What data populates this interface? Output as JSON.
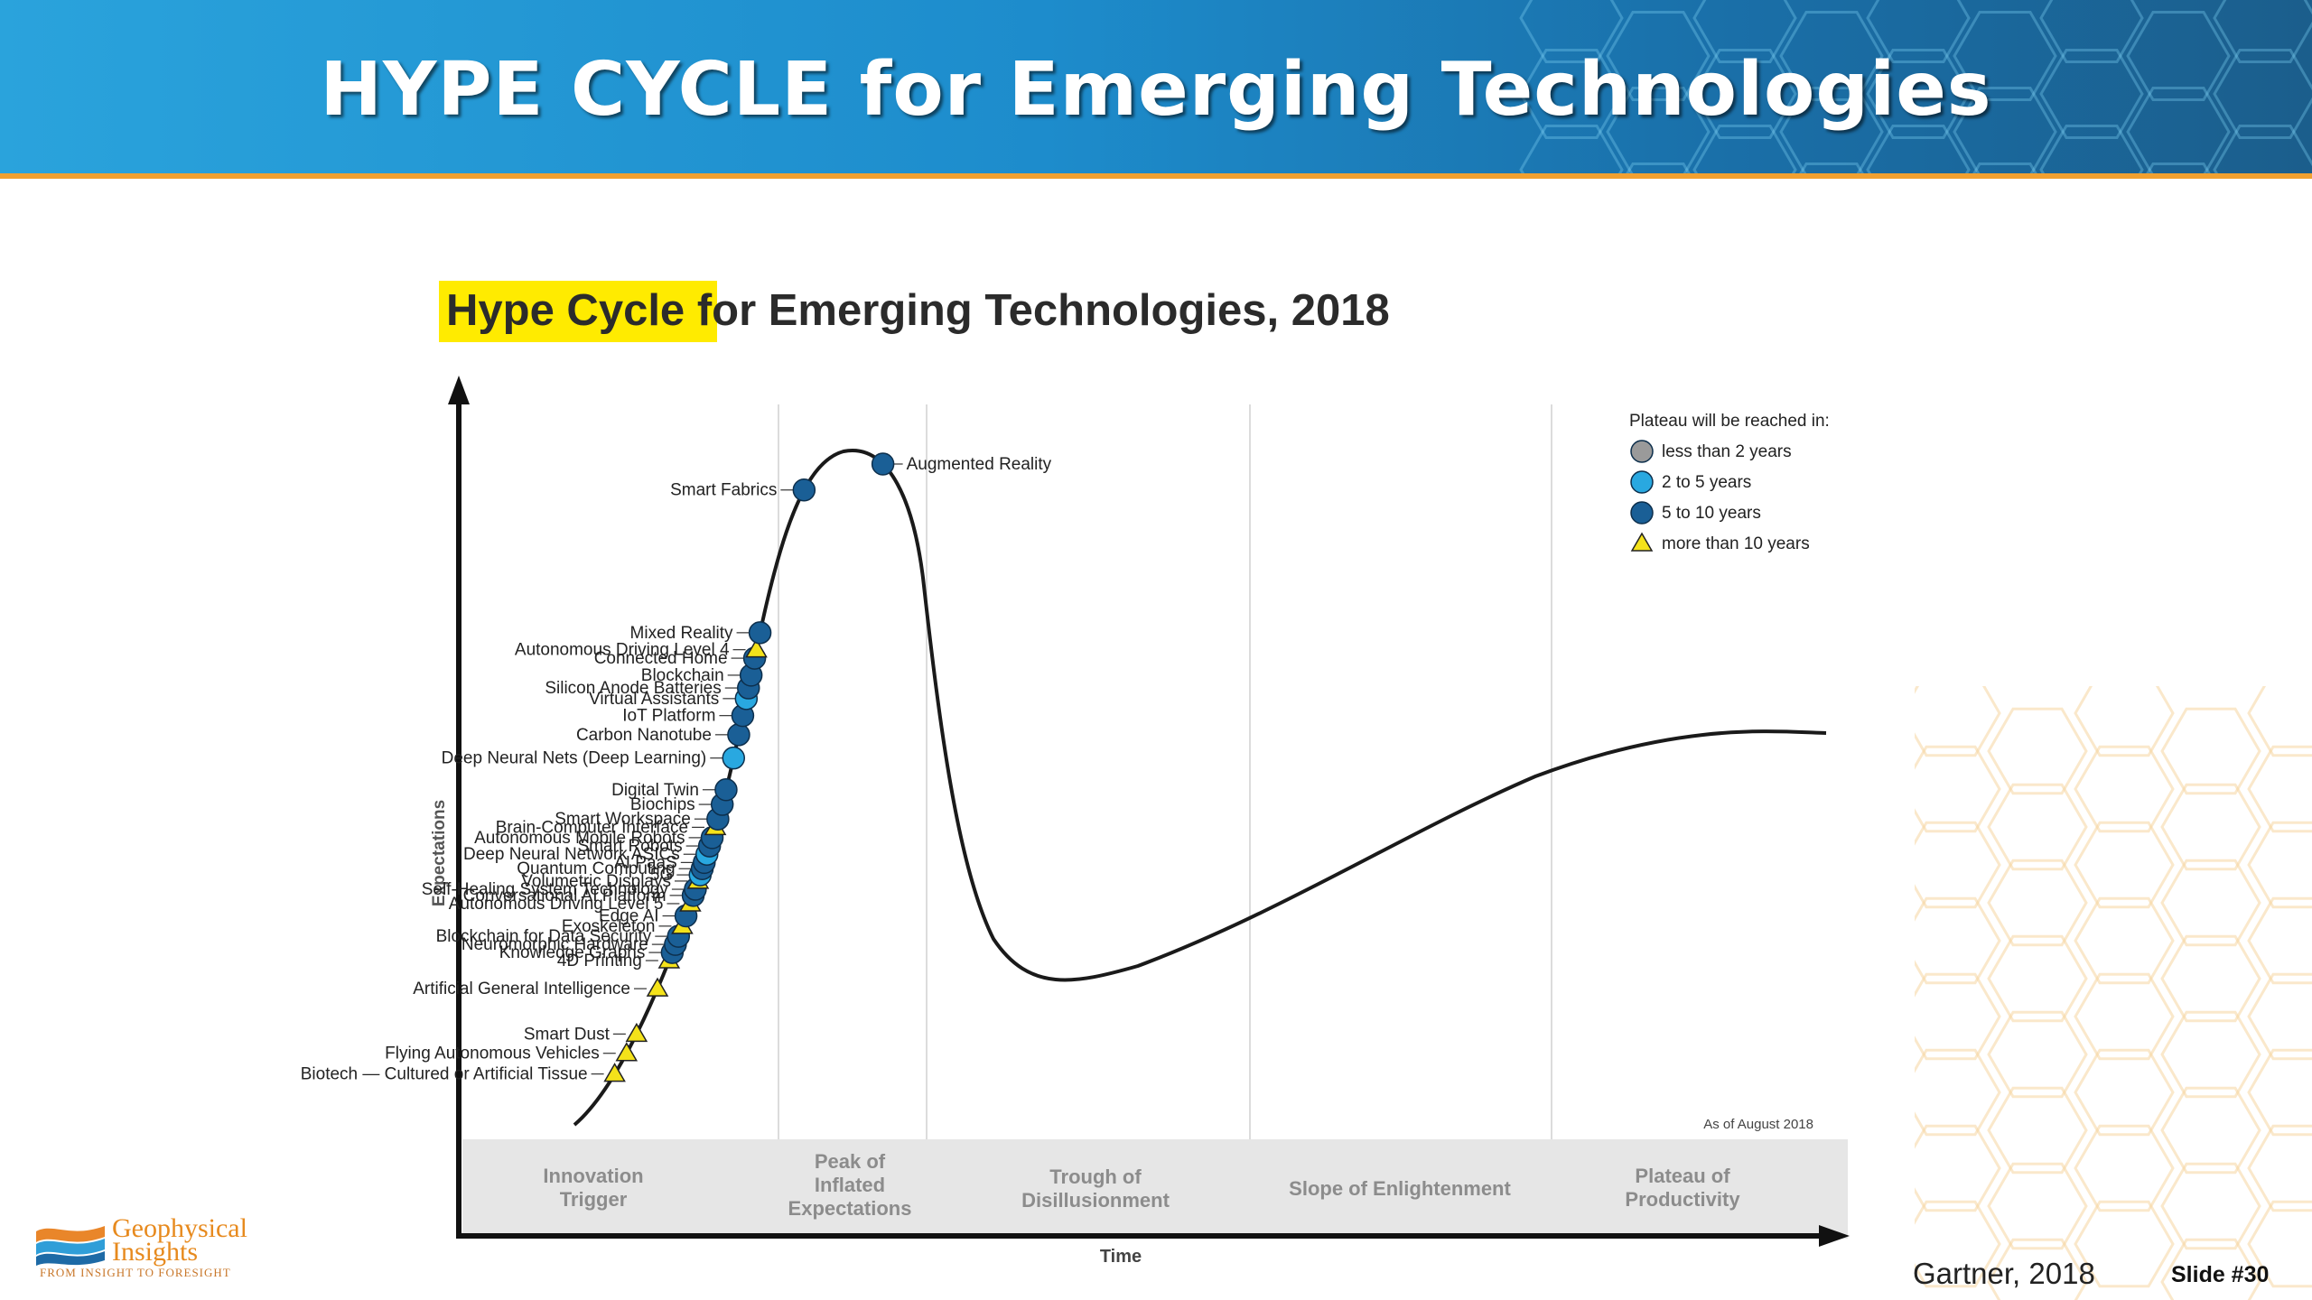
{
  "slide": {
    "title": "HYPE CYCLE for Emerging Technologies",
    "citation": "Gartner, 2018",
    "slide_number": "Slide #30",
    "logo": {
      "name_line1": "Geophysical",
      "name_line2": "Insights",
      "tagline": "FROM INSIGHT TO FORESIGHT"
    }
  },
  "colors": {
    "header_blue": "#1d8ccc",
    "header_accent": "#f0a030",
    "legend_highlight": "#ffeb00",
    "curve": "#1a1a1a",
    "less_than_2": "#9a9a9a",
    "two_to_five": "#29a8e0",
    "five_to_ten": "#1a5f96",
    "more_than_10": "#f4e21a"
  },
  "chart_data": {
    "type": "scatter",
    "title_highlight": "Hype Cycle",
    "title_rest": " for Emerging Technologies, 2018",
    "xlabel": "Time",
    "ylabel": "Expectations",
    "as_of": "As of August 2018",
    "phases": [
      "Innovation Trigger",
      "Peak of Inflated Expectations",
      "Trough of Disillusionment",
      "Slope of Enlightenment",
      "Plateau of Productivity"
    ],
    "legend": {
      "title": "Plateau will be reached in:",
      "items": [
        {
          "key": "lt2",
          "label": "less than 2 years",
          "shape": "circle"
        },
        {
          "key": "2to5",
          "label": "2 to 5 years",
          "shape": "circle"
        },
        {
          "key": "5to10",
          "label": "5 to 10 years",
          "shape": "circle"
        },
        {
          "key": "gt10",
          "label": "more than 10 years",
          "shape": "triangle"
        }
      ]
    },
    "technologies": [
      {
        "name": "Biotech — Cultured or Artificial Tissue",
        "plateau": "gt10",
        "t": 0.03
      },
      {
        "name": "Flying Autonomous Vehicles",
        "plateau": "gt10",
        "t": 0.041
      },
      {
        "name": "Smart Dust",
        "plateau": "gt10",
        "t": 0.051
      },
      {
        "name": "Artificial General Intelligence",
        "plateau": "gt10",
        "t": 0.074
      },
      {
        "name": "4D Printing",
        "plateau": "gt10",
        "t": 0.088
      },
      {
        "name": "Knowledge Graphs",
        "plateau": "5to10",
        "t": 0.092
      },
      {
        "name": "Neuromorphic Hardware",
        "plateau": "5to10",
        "t": 0.096
      },
      {
        "name": "Blockchain for Data Security",
        "plateau": "5to10",
        "t": 0.1
      },
      {
        "name": "Exoskeleton",
        "plateau": "gt10",
        "t": 0.105
      },
      {
        "name": "Edge AI",
        "plateau": "5to10",
        "t": 0.11
      },
      {
        "name": "Autonomous Driving Level 5",
        "plateau": "gt10",
        "t": 0.116
      },
      {
        "name": "Conversational AI Platform",
        "plateau": "5to10",
        "t": 0.12
      },
      {
        "name": "Self-Healing System Technology",
        "plateau": "5to10",
        "t": 0.123
      },
      {
        "name": "Volumetric Displays",
        "plateau": "gt10",
        "t": 0.127
      },
      {
        "name": "5G",
        "plateau": "2to5",
        "t": 0.13
      },
      {
        "name": "Quantum Computing",
        "plateau": "5to10",
        "t": 0.133
      },
      {
        "name": "AI PaaS",
        "plateau": "5to10",
        "t": 0.136
      },
      {
        "name": "Deep Neural Network ASICs",
        "plateau": "2to5",
        "t": 0.14
      },
      {
        "name": "Smart Robots",
        "plateau": "5to10",
        "t": 0.144
      },
      {
        "name": "Autonomous Mobile Robots",
        "plateau": "5to10",
        "t": 0.148
      },
      {
        "name": "Brain-Computer Interface",
        "plateau": "gt10",
        "t": 0.153
      },
      {
        "name": "Smart Workspace",
        "plateau": "5to10",
        "t": 0.157
      },
      {
        "name": "Biochips",
        "plateau": "5to10",
        "t": 0.164
      },
      {
        "name": "Digital Twin",
        "plateau": "5to10",
        "t": 0.171
      },
      {
        "name": "Deep Neural Nets (Deep Learning)",
        "plateau": "2to5",
        "t": 0.186
      },
      {
        "name": "Carbon Nanotube",
        "plateau": "5to10",
        "t": 0.197
      },
      {
        "name": "IoT Platform",
        "plateau": "5to10",
        "t": 0.206
      },
      {
        "name": "Virtual Assistants",
        "plateau": "2to5",
        "t": 0.214
      },
      {
        "name": "Silicon Anode Batteries",
        "plateau": "5to10",
        "t": 0.219
      },
      {
        "name": "Blockchain",
        "plateau": "5to10",
        "t": 0.225
      },
      {
        "name": "Connected Home",
        "plateau": "5to10",
        "t": 0.233
      },
      {
        "name": "Autonomous Driving Level 4",
        "plateau": "gt10",
        "t": 0.237
      },
      {
        "name": "Mixed Reality",
        "plateau": "5to10",
        "t": 0.245
      },
      {
        "name": "Smart Fabrics",
        "plateau": "5to10",
        "t": 0.314
      },
      {
        "name": "Augmented Reality",
        "plateau": "5to10",
        "t": 0.36
      }
    ]
  }
}
